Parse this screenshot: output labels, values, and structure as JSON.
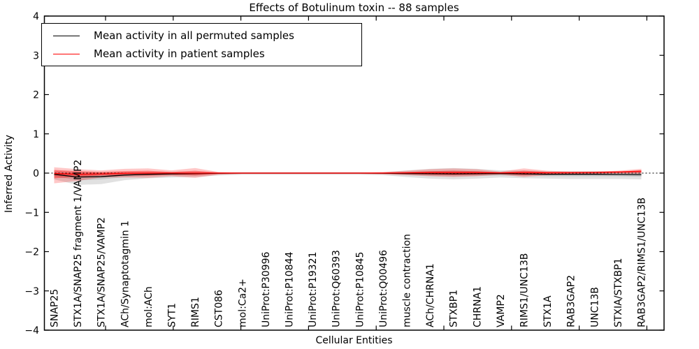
{
  "title": "Effects of Botulinum toxin -- 88 samples",
  "legend": {
    "entries": [
      {
        "label": "Mean activity in all permuted samples",
        "color": "#000000"
      },
      {
        "label": "Mean activity in patient samples",
        "color": "#ff0000"
      }
    ],
    "position": "upper left"
  },
  "colors": {
    "patient": "#ff0000",
    "permuted": "#000000",
    "patient_band": "#ff0000",
    "permuted_band": "#888888",
    "frame": "#000000",
    "background": "#ffffff"
  },
  "chart_data": {
    "type": "line",
    "title": "Effects of Botulinum toxin -- 88 samples",
    "xlabel": "Cellular Entities",
    "ylabel": "Inferred Activity",
    "ylim": [
      -4,
      4
    ],
    "ytick_labels": [
      "−4",
      "−3",
      "−2",
      "−1",
      "0",
      "1",
      "2",
      "3",
      "4"
    ],
    "ytick_values": [
      -4,
      -3,
      -2,
      -1,
      0,
      1,
      2,
      3,
      4
    ],
    "grid": false,
    "legend_position": "upper left",
    "categories": [
      "SNAP25",
      "STX1A/SNAP25 fragment 1/VAMP2",
      "STX1A/SNAP25/VAMP2",
      "ACh/Synaptotagmin 1",
      "mol:ACh",
      "SYT1",
      "RIMS1",
      "CST086",
      "mol:Ca2+",
      "UniProt:P30996",
      "UniProt:P10844",
      "UniProt:P19321",
      "UniProt:Q60393",
      "UniProt:P10845",
      "UniProt:Q00496",
      "muscle contraction",
      "ACh/CHRNA1",
      "STXBP1",
      "CHRNA1",
      "VAMP2",
      "RIMS1/UNC13B",
      "STX1A",
      "RAB3GAP2",
      "UNC13B",
      "STXIA/STXBP1",
      "RAB3GAP2/RIMS1/UNC13B"
    ],
    "zero_line": {
      "y": 0,
      "style": "dashed",
      "color": "#000000"
    },
    "series": [
      {
        "name": "Mean activity in all permuted samples",
        "color": "#000000",
        "values": [
          -0.03,
          -0.1,
          -0.09,
          -0.05,
          -0.03,
          -0.02,
          -0.01,
          -0.005,
          0,
          0,
          0,
          0,
          0,
          0,
          -0.005,
          -0.01,
          -0.015,
          -0.02,
          -0.015,
          -0.01,
          -0.02,
          -0.03,
          -0.03,
          -0.03,
          -0.035,
          -0.04
        ]
      },
      {
        "name": "Mean activity in patient samples",
        "color": "#ff0000",
        "values": [
          -0.01,
          -0.03,
          -0.02,
          -0.005,
          0,
          0,
          0,
          0,
          0,
          0,
          0,
          0,
          0,
          0,
          0,
          0.005,
          0.01,
          0.01,
          0.01,
          0.005,
          0.01,
          0.01,
          0.015,
          0.02,
          0.03,
          0.05
        ]
      }
    ],
    "bands": [
      {
        "name": "permuted-band-outer",
        "color": "#888888",
        "opacity": 0.25,
        "upper": [
          0.06,
          0.03,
          0.02,
          0.03,
          0.03,
          0.03,
          0.03,
          0.02,
          0.02,
          0.02,
          0.02,
          0.02,
          0.02,
          0.02,
          0.02,
          0.07,
          0.11,
          0.13,
          0.11,
          0.07,
          0.07,
          0.05,
          0.05,
          0.05,
          0.04,
          0.04
        ],
        "lower": [
          -0.16,
          -0.3,
          -0.28,
          -0.18,
          -0.13,
          -0.11,
          -0.1,
          -0.06,
          -0.04,
          -0.04,
          -0.04,
          -0.04,
          -0.04,
          -0.04,
          -0.05,
          -0.1,
          -0.14,
          -0.16,
          -0.14,
          -0.11,
          -0.13,
          -0.14,
          -0.15,
          -0.15,
          -0.15,
          -0.16
        ]
      },
      {
        "name": "permuted-band-inner",
        "color": "#888888",
        "opacity": 0.3,
        "upper": [
          0.01,
          -0.03,
          -0.03,
          -0.01,
          0.0,
          0.0,
          0.005,
          0.005,
          0.005,
          0.005,
          0.005,
          0.005,
          0.005,
          0.005,
          0.005,
          0.03,
          0.05,
          0.06,
          0.05,
          0.03,
          0.02,
          0.01,
          0.01,
          0.01,
          0.005,
          0.005
        ],
        "lower": [
          -0.08,
          -0.18,
          -0.16,
          -0.1,
          -0.07,
          -0.06,
          -0.05,
          -0.03,
          -0.02,
          -0.02,
          -0.02,
          -0.02,
          -0.02,
          -0.02,
          -0.025,
          -0.05,
          -0.07,
          -0.08,
          -0.07,
          -0.06,
          -0.07,
          -0.08,
          -0.08,
          -0.08,
          -0.08,
          -0.09
        ]
      },
      {
        "name": "patient-band-outer",
        "color": "#ff0000",
        "opacity": 0.22,
        "upper": [
          0.15,
          0.1,
          0.07,
          0.11,
          0.12,
          0.07,
          0.13,
          0.03,
          0.02,
          0.02,
          0.02,
          0.02,
          0.02,
          0.02,
          0.03,
          0.06,
          0.1,
          0.12,
          0.1,
          0.04,
          0.12,
          0.06,
          0.04,
          0.04,
          0.06,
          0.11
        ],
        "lower": [
          -0.26,
          -0.2,
          -0.11,
          -0.11,
          -0.12,
          -0.08,
          -0.12,
          -0.04,
          -0.02,
          -0.02,
          -0.02,
          -0.02,
          -0.02,
          -0.02,
          -0.03,
          -0.05,
          -0.08,
          -0.1,
          -0.08,
          -0.04,
          -0.1,
          -0.05,
          -0.03,
          -0.02,
          -0.01,
          -0.01
        ]
      },
      {
        "name": "patient-band-inner",
        "color": "#ff0000",
        "opacity": 0.38,
        "upper": [
          0.08,
          0.05,
          0.03,
          0.05,
          0.06,
          0.03,
          0.06,
          0.015,
          0.01,
          0.01,
          0.01,
          0.01,
          0.01,
          0.01,
          0.015,
          0.03,
          0.05,
          0.06,
          0.05,
          0.02,
          0.06,
          0.03,
          0.02,
          0.025,
          0.04,
          0.07
        ],
        "lower": [
          -0.13,
          -0.1,
          -0.06,
          -0.05,
          -0.06,
          -0.04,
          -0.06,
          -0.02,
          -0.01,
          -0.01,
          -0.01,
          -0.01,
          -0.01,
          -0.01,
          -0.015,
          -0.025,
          -0.04,
          -0.05,
          -0.04,
          -0.02,
          -0.05,
          -0.025,
          -0.015,
          -0.01,
          -0.005,
          -0.005
        ]
      }
    ]
  }
}
